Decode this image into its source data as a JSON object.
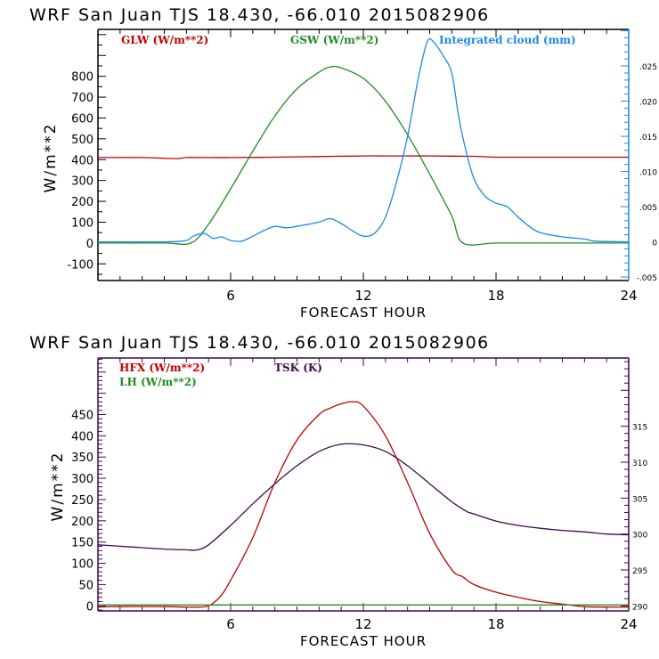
{
  "chart_data": [
    {
      "type": "line",
      "title": "WRF  San Juan TJS  18.430, -66.010  2015082906",
      "xlabel": "FORECAST HOUR",
      "ylabel": "W/m**2",
      "xlim": [
        0,
        24
      ],
      "ylim": [
        -180,
        1025
      ],
      "x_ticks": [
        6,
        12,
        18,
        24
      ],
      "y_ticks": [
        -100,
        0,
        100,
        200,
        300,
        400,
        500,
        600,
        700,
        800
      ],
      "y2lim": [
        -0.0055,
        0.0302
      ],
      "y2_ticks": [
        -0.005,
        0,
        0.005,
        0.01,
        0.015,
        0.02,
        0.025
      ],
      "y2_tick_labels": [
        "-.005",
        "0",
        ".005",
        ".010",
        ".015",
        ".020",
        ".025"
      ],
      "frame_color": "#000000",
      "right_axis_color": "#1e88e5",
      "series": [
        {
          "name": "GLW (W/m**2)",
          "axis": "left",
          "color": "#c00000",
          "x": [
            0,
            2,
            3.5,
            4,
            5,
            6,
            8,
            10,
            12,
            13,
            14,
            15,
            16,
            17,
            18,
            20,
            22,
            24
          ],
          "y": [
            410,
            410,
            405,
            410,
            410,
            410,
            412,
            415,
            418,
            418,
            418,
            418,
            417,
            416,
            412,
            412,
            412,
            412
          ]
        },
        {
          "name": "GSW (W/m**2)",
          "axis": "left",
          "color": "#228b22",
          "x": [
            0,
            3,
            4.2,
            5,
            6,
            7,
            8,
            9,
            10,
            10.5,
            11,
            12,
            13,
            14,
            15,
            16,
            16.5,
            18,
            20,
            22,
            24
          ],
          "y": [
            0,
            0,
            0,
            90,
            260,
            440,
            610,
            740,
            820,
            845,
            840,
            790,
            680,
            520,
            330,
            130,
            0,
            0,
            0,
            0,
            0
          ]
        },
        {
          "name": "Integrated cloud (mm)",
          "axis": "right",
          "color": "#1e88e5",
          "x": [
            0,
            3,
            4,
            4.3,
            4.8,
            5.2,
            5.6,
            6,
            6.5,
            7,
            7.5,
            8,
            8.5,
            9,
            10,
            10.5,
            11,
            11.5,
            12,
            12.5,
            13,
            13.5,
            14,
            14.5,
            14.9,
            15.2,
            15.6,
            16,
            16.3,
            16.6,
            17,
            17.5,
            18,
            18.5,
            19,
            19.5,
            20,
            21,
            22,
            22.5,
            24
          ],
          "y": [
            0,
            0,
            0.0002,
            0.0008,
            0.0012,
            0.0005,
            0.0007,
            0.0002,
            0.0001,
            0.0008,
            0.0016,
            0.0022,
            0.002,
            0.0022,
            0.0028,
            0.0033,
            0.0026,
            0.0016,
            0.0008,
            0.0012,
            0.0035,
            0.0085,
            0.015,
            0.0235,
            0.0285,
            0.0283,
            0.0265,
            0.024,
            0.018,
            0.0135,
            0.009,
            0.0065,
            0.0055,
            0.005,
            0.0035,
            0.0022,
            0.0013,
            0.0007,
            0.0004,
            0.0001,
            0
          ]
        }
      ],
      "legend": "top, horizontal inside frame"
    },
    {
      "type": "line",
      "title": "WRF  San Juan TJS  18.430, -66.010  2015082906",
      "xlabel": "FORECAST HOUR",
      "ylabel": "W/m**2",
      "xlim": [
        0,
        24
      ],
      "ylim": [
        -12,
        583
      ],
      "x_ticks": [
        6,
        12,
        18,
        24
      ],
      "y_ticks": [
        0,
        50,
        100,
        150,
        200,
        250,
        300,
        350,
        400,
        450
      ],
      "y2lim": [
        289.3,
        324.5
      ],
      "y2_ticks": [
        290,
        295,
        300,
        305,
        310,
        315
      ],
      "y2_tick_labels": [
        "290",
        "295",
        "300",
        "305",
        "310",
        "315"
      ],
      "frame_color": "#3d0a4f",
      "right_axis_color": "#3d0a4f",
      "series": [
        {
          "name": "HFX (W/m**2)",
          "axis": "left",
          "color": "#c00000",
          "x": [
            0,
            1,
            3,
            4,
            4.5,
            5,
            5.5,
            6,
            7,
            8,
            9,
            10,
            10.5,
            11,
            11.5,
            12,
            13,
            14,
            15,
            16,
            16.5,
            17,
            18,
            19,
            20,
            21,
            22,
            23,
            24
          ],
          "y": [
            -3,
            -2,
            -2,
            -3,
            -3,
            0,
            20,
            60,
            160,
            290,
            390,
            450,
            465,
            475,
            480,
            470,
            400,
            290,
            170,
            85,
            68,
            50,
            32,
            20,
            10,
            4,
            -2,
            -3,
            -3
          ],
          "note": "HFX rendered ~ -3 near start and end"
        },
        {
          "name": "LH (W/m**2)",
          "axis": "left",
          "color": "#228b22",
          "x": [
            0,
            24
          ],
          "y": [
            2,
            2
          ]
        },
        {
          "name": "TSK (K)",
          "axis": "right",
          "color": "#3d0a4f",
          "x": [
            0,
            1,
            2,
            3,
            4,
            4.5,
            5,
            6,
            7,
            8,
            9,
            10,
            11,
            12,
            13,
            14,
            15,
            16,
            16.7,
            17,
            18,
            19,
            20,
            21,
            22,
            23,
            24
          ],
          "y": [
            298.5,
            298.3,
            298.1,
            297.9,
            297.8,
            297.8,
            298.5,
            301.2,
            304.2,
            307.0,
            309.5,
            311.5,
            312.5,
            312.4,
            311.5,
            309.5,
            307.0,
            304.5,
            303.1,
            302.8,
            301.8,
            301.2,
            300.8,
            300.5,
            300.3,
            300.0,
            299.9
          ]
        }
      ],
      "legend": "top-left, stacked inside frame"
    }
  ]
}
